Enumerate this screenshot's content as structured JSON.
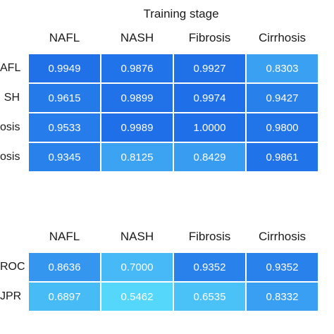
{
  "chart_data": [
    {
      "type": "heatmap",
      "title": "Training stage",
      "columns": [
        "NAFL",
        "NASH",
        "Fibrosis",
        "Cirrhosis"
      ],
      "rows": [
        "AFL",
        "SH",
        "osis",
        "osis"
      ],
      "values": [
        [
          "0.9949",
          "0.9876",
          "0.9927",
          "0.8303"
        ],
        [
          "0.9615",
          "0.9899",
          "0.9974",
          "0.9427"
        ],
        [
          "0.9533",
          "0.9989",
          "1.0000",
          "0.9800"
        ],
        [
          "0.9345",
          "0.8125",
          "0.8429",
          "0.9861"
        ]
      ]
    },
    {
      "type": "heatmap",
      "columns": [
        "NAFL",
        "NASH",
        "Fibrosis",
        "Cirrhosis"
      ],
      "rows": [
        "ROC",
        "JPR"
      ],
      "values": [
        [
          "0.8636",
          "0.7000",
          "0.9352",
          "0.9352"
        ],
        [
          "0.6897",
          "0.5462",
          "0.6535",
          "0.8332"
        ]
      ]
    }
  ],
  "colors": {
    "high": "#1f6fe8",
    "mid": "#3aa0f2",
    "low": "#55d8fb"
  }
}
